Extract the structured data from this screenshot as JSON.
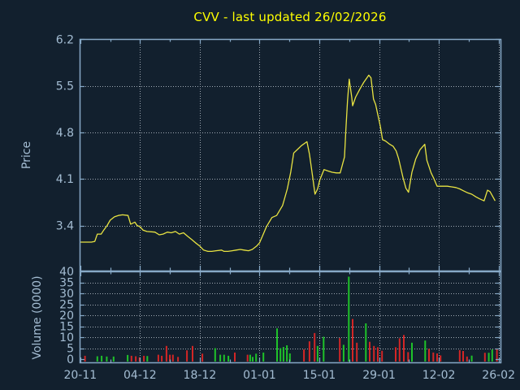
{
  "header": {
    "title": "CVV - last updated 26/02/2026"
  },
  "chart_data": {
    "type": "line+bar",
    "title": "CVV - last updated 26/02/2026",
    "x_axis": {
      "tick_labels": [
        "20-11",
        "04-12",
        "18-12",
        "01-01",
        "15-01",
        "29-01",
        "12-02",
        "26-02"
      ],
      "tick_days": [
        0,
        14,
        28,
        42,
        56,
        70,
        84,
        98
      ],
      "minor_tick_days": [
        7,
        21,
        35,
        49,
        63,
        77,
        91
      ],
      "range_days": [
        0,
        98.4
      ]
    },
    "price_panel": {
      "ylabel": "Price",
      "tick_values": [
        6.2,
        5.5,
        4.8,
        4.1,
        3.4
      ],
      "ylim": [
        2.72,
        6.21
      ],
      "grid": true,
      "points": [
        [
          0,
          3.15
        ],
        [
          2.6,
          3.15
        ],
        [
          3.4,
          3.16
        ],
        [
          4,
          3.27
        ],
        [
          4.9,
          3.27
        ],
        [
          5.5,
          3.33
        ],
        [
          6.3,
          3.4
        ],
        [
          7,
          3.48
        ],
        [
          8,
          3.53
        ],
        [
          8.9,
          3.55
        ],
        [
          9.9,
          3.56
        ],
        [
          11.2,
          3.55
        ],
        [
          11.8,
          3.42
        ],
        [
          12.8,
          3.45
        ],
        [
          13.3,
          3.4
        ],
        [
          14,
          3.38
        ],
        [
          14.7,
          3.33
        ],
        [
          15.6,
          3.31
        ],
        [
          17.5,
          3.3
        ],
        [
          18.5,
          3.26
        ],
        [
          19.4,
          3.27
        ],
        [
          20.4,
          3.3
        ],
        [
          21.3,
          3.29
        ],
        [
          22.3,
          3.31
        ],
        [
          23.2,
          3.27
        ],
        [
          24.2,
          3.29
        ],
        [
          25.1,
          3.24
        ],
        [
          26.1,
          3.19
        ],
        [
          27,
          3.14
        ],
        [
          28,
          3.09
        ],
        [
          28.9,
          3.03
        ],
        [
          29.9,
          3.01
        ],
        [
          30.8,
          3.01
        ],
        [
          31.8,
          3.02
        ],
        [
          33.1,
          3.03
        ],
        [
          33.7,
          3.01
        ],
        [
          34.6,
          3.01
        ],
        [
          35.6,
          3.02
        ],
        [
          36.5,
          3.03
        ],
        [
          37.5,
          3.04
        ],
        [
          38.4,
          3.03
        ],
        [
          39.4,
          3.02
        ],
        [
          40.3,
          3.04
        ],
        [
          41.3,
          3.09
        ],
        [
          42,
          3.14
        ],
        [
          42.8,
          3.26
        ],
        [
          43.6,
          3.38
        ],
        [
          44.9,
          3.52
        ],
        [
          46,
          3.55
        ],
        [
          47.4,
          3.7
        ],
        [
          48.5,
          3.95
        ],
        [
          49.3,
          4.2
        ],
        [
          50,
          4.49
        ],
        [
          51,
          4.55
        ],
        [
          51.8,
          4.6
        ],
        [
          53.1,
          4.66
        ],
        [
          53.7,
          4.47
        ],
        [
          54.4,
          4.15
        ],
        [
          55,
          3.87
        ],
        [
          55.6,
          3.95
        ],
        [
          56.1,
          4.08
        ],
        [
          57.1,
          4.24
        ],
        [
          58,
          4.22
        ],
        [
          59,
          4.2
        ],
        [
          60,
          4.19
        ],
        [
          60.9,
          4.19
        ],
        [
          61.9,
          4.43
        ],
        [
          62.2,
          4.82
        ],
        [
          62.6,
          5.27
        ],
        [
          63,
          5.6
        ],
        [
          63.6,
          5.33
        ],
        [
          63.8,
          5.2
        ],
        [
          64.5,
          5.33
        ],
        [
          65.5,
          5.45
        ],
        [
          66.4,
          5.55
        ],
        [
          67.6,
          5.66
        ],
        [
          68.1,
          5.62
        ],
        [
          68.7,
          5.3
        ],
        [
          69.2,
          5.22
        ],
        [
          70.3,
          4.89
        ],
        [
          70.8,
          4.69
        ],
        [
          71.5,
          4.67
        ],
        [
          72.5,
          4.62
        ],
        [
          73.3,
          4.59
        ],
        [
          74,
          4.52
        ],
        [
          74.6,
          4.4
        ],
        [
          75.6,
          4.12
        ],
        [
          76.3,
          3.96
        ],
        [
          76.9,
          3.9
        ],
        [
          77.7,
          4.2
        ],
        [
          78.6,
          4.4
        ],
        [
          79.6,
          4.54
        ],
        [
          80.7,
          4.62
        ],
        [
          81.2,
          4.38
        ],
        [
          82.2,
          4.19
        ],
        [
          82.8,
          4.11
        ],
        [
          83.6,
          3.99
        ],
        [
          85,
          3.99
        ],
        [
          86,
          3.99
        ],
        [
          87,
          3.98
        ],
        [
          88,
          3.97
        ],
        [
          88.9,
          3.95
        ],
        [
          89.8,
          3.92
        ],
        [
          90.8,
          3.89
        ],
        [
          91.7,
          3.87
        ],
        [
          92.7,
          3.83
        ],
        [
          93.6,
          3.8
        ],
        [
          94.6,
          3.77
        ],
        [
          95.4,
          3.93
        ],
        [
          96,
          3.91
        ],
        [
          96.5,
          3.85
        ],
        [
          97.2,
          3.77
        ]
      ]
    },
    "volume_panel": {
      "ylabel": "Volume (0000)",
      "tick_values": [
        40,
        35,
        30,
        25,
        20,
        15,
        10,
        5,
        0
      ],
      "ylim": [
        -1.5,
        40
      ],
      "grid": true,
      "bars": [
        [
          1.1,
          1.5,
          "down"
        ],
        [
          4,
          1.3,
          "up"
        ],
        [
          5,
          1.5,
          "up"
        ],
        [
          6.2,
          1.2,
          "up"
        ],
        [
          7.8,
          1.2,
          "up"
        ],
        [
          11.1,
          1.9,
          "up"
        ],
        [
          12,
          1.5,
          "down"
        ],
        [
          13,
          1.3,
          "down"
        ],
        [
          13.9,
          0.8,
          "down"
        ],
        [
          14.9,
          1.5,
          "down"
        ],
        [
          15.7,
          1.4,
          "up"
        ],
        [
          18.3,
          2,
          "down"
        ],
        [
          19.1,
          1.5,
          "down"
        ],
        [
          20.2,
          6,
          "down"
        ],
        [
          21,
          2,
          "down"
        ],
        [
          21.7,
          2,
          "down"
        ],
        [
          22.9,
          1,
          "down"
        ],
        [
          25,
          4,
          "down"
        ],
        [
          26.3,
          6,
          "down"
        ],
        [
          28.6,
          2.5,
          "down"
        ],
        [
          31.6,
          5,
          "up"
        ],
        [
          32.8,
          2,
          "up"
        ],
        [
          33.7,
          2,
          "up"
        ],
        [
          34.7,
          1.5,
          "up"
        ],
        [
          36.2,
          3,
          "down"
        ],
        [
          39.2,
          2,
          "down"
        ],
        [
          39.8,
          2,
          "up"
        ],
        [
          40.4,
          1,
          "up"
        ],
        [
          41.2,
          2.5,
          "up"
        ],
        [
          42.9,
          3,
          "up"
        ],
        [
          46.1,
          14,
          "up"
        ],
        [
          46.9,
          5,
          "up"
        ],
        [
          47.6,
          5.5,
          "up"
        ],
        [
          48.4,
          6.3,
          "up"
        ],
        [
          49.1,
          2.6,
          "up"
        ],
        [
          52.4,
          4.4,
          "down"
        ],
        [
          53.7,
          8.1,
          "down"
        ],
        [
          54.9,
          11.9,
          "down"
        ],
        [
          55.6,
          6,
          "up"
        ],
        [
          57,
          10.2,
          "up"
        ],
        [
          60.8,
          9.6,
          "down"
        ],
        [
          61.7,
          6.5,
          "up"
        ],
        [
          62.9,
          37.6,
          "up"
        ],
        [
          63.8,
          18.3,
          "down"
        ],
        [
          64.8,
          7.5,
          "down"
        ],
        [
          66.9,
          16.3,
          "up"
        ],
        [
          67.8,
          7.9,
          "down"
        ],
        [
          68.8,
          6,
          "down"
        ],
        [
          69.7,
          5.4,
          "down"
        ],
        [
          70.7,
          3.8,
          "down"
        ],
        [
          73.9,
          5.4,
          "down"
        ],
        [
          74.8,
          9.5,
          "down"
        ],
        [
          75.8,
          11,
          "down"
        ],
        [
          76.8,
          3.2,
          "down"
        ],
        [
          77.7,
          7.5,
          "up"
        ],
        [
          80.8,
          8.5,
          "up"
        ],
        [
          81.7,
          4.7,
          "down"
        ],
        [
          82.7,
          3,
          "down"
        ],
        [
          83.6,
          2.6,
          "down"
        ],
        [
          84.4,
          1.7,
          "down"
        ],
        [
          88.9,
          4.1,
          "down"
        ],
        [
          89.7,
          3.7,
          "down"
        ],
        [
          90.6,
          1.2,
          "down"
        ],
        [
          91.7,
          1.6,
          "up"
        ],
        [
          94.8,
          2.9,
          "down"
        ],
        [
          95.7,
          2.9,
          "up"
        ],
        [
          96.5,
          4.4,
          "up"
        ],
        [
          97.6,
          4.7,
          "down"
        ]
      ]
    },
    "colors": {
      "background": "#12202e",
      "frame": "#87a9c7",
      "grid": "#a0aab4",
      "text": "#a4bdd3",
      "title": "#ffff00",
      "price_line": "#e8e342",
      "volume_up": "#1fc32a",
      "volume_down": "#d32626"
    },
    "legend": "none"
  }
}
